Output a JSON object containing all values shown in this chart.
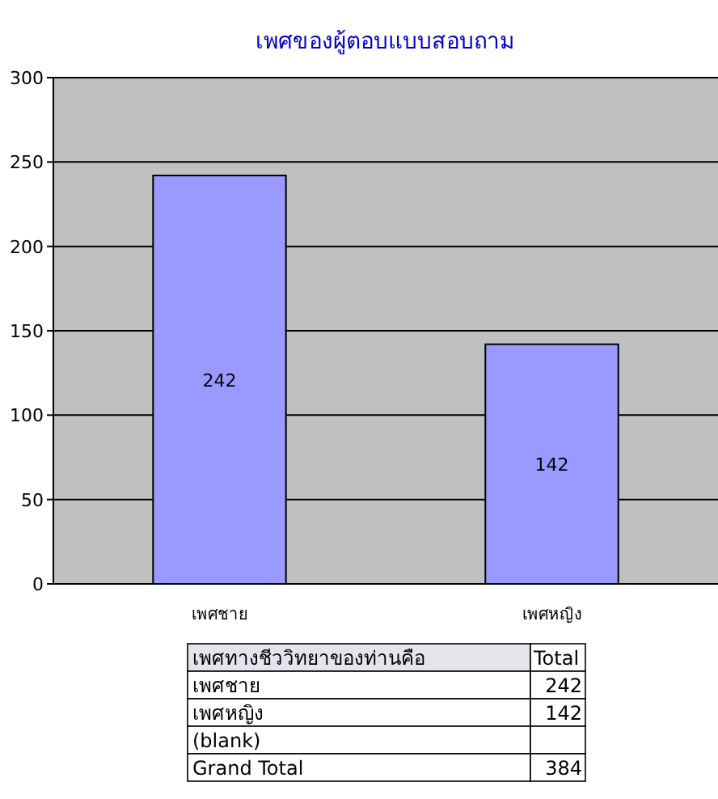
{
  "chart_data": {
    "type": "bar",
    "title": "เพศของผู้ตอบแบบสอบถาม",
    "categories": [
      "เพศชาย",
      "เพศหญิง"
    ],
    "values": [
      242,
      142
    ],
    "color": "#9999ff",
    "ylim": [
      0,
      300
    ],
    "yticks": [
      0,
      50,
      100,
      150,
      200,
      250,
      300
    ],
    "grid": "y",
    "data_labels": true,
    "annotations": [
      "เพศทางชีววิทยาของท่านคือ",
      "Total",
      "242",
      "142",
      "(blank)",
      "Grand Total",
      "384"
    ]
  }
}
